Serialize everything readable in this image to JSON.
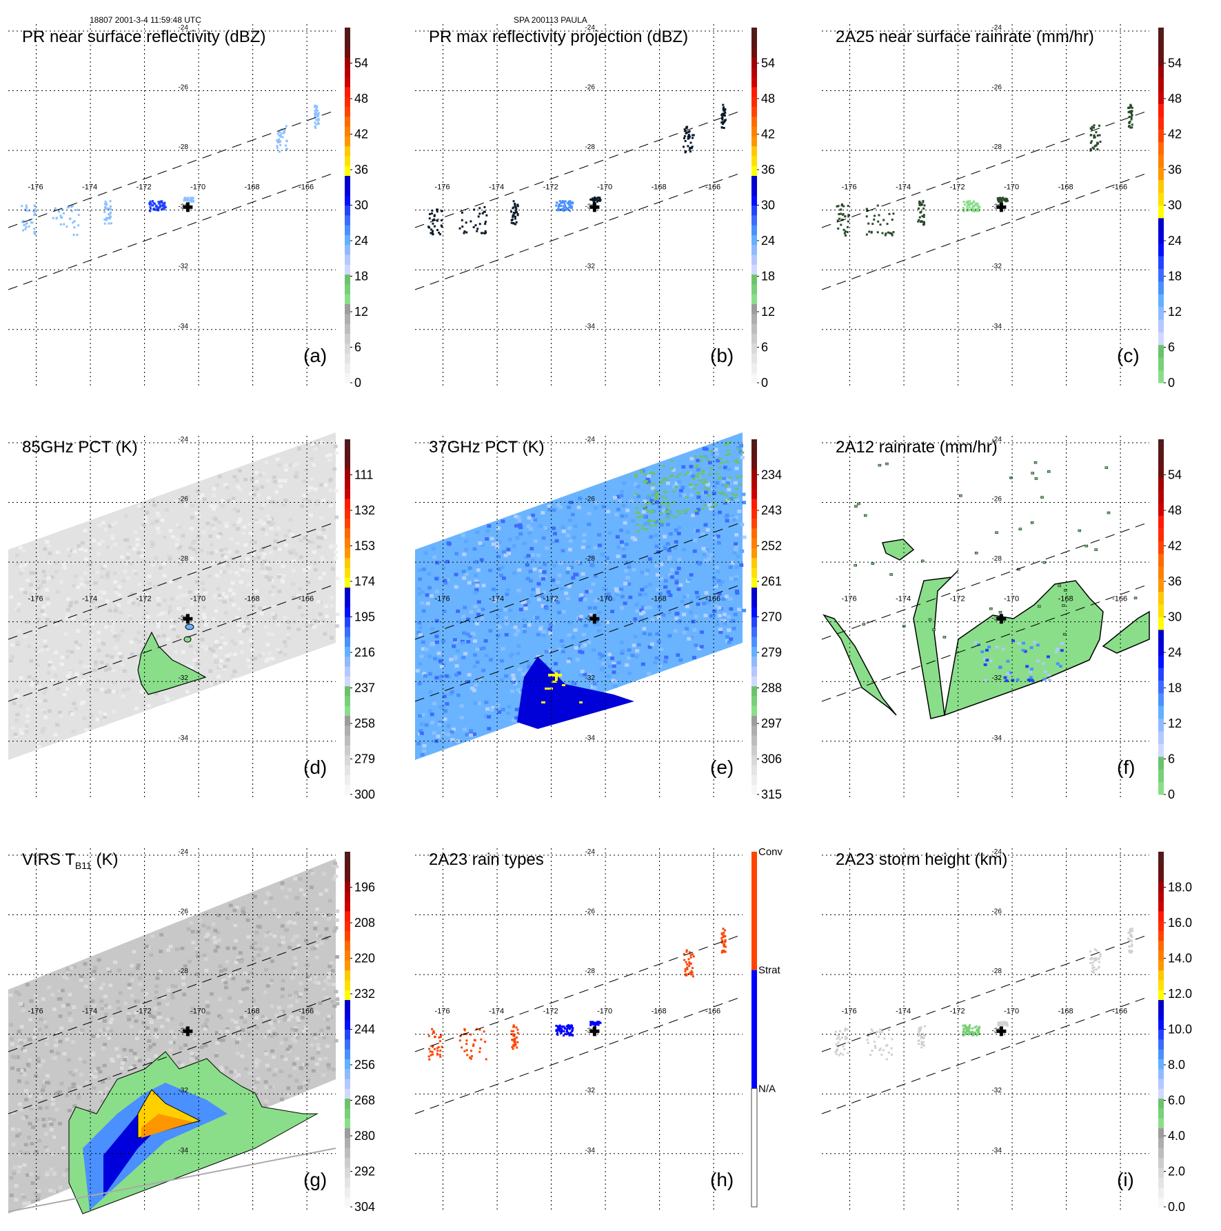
{
  "header": {
    "left": "18807 2001-3-4 11:59:48 UTC",
    "center": "SPA 200113 PAULA"
  },
  "map": {
    "lon_ticks": [
      "-176",
      "-174",
      "-172",
      "-170",
      "-168",
      "-166"
    ],
    "lon_values": [
      -176,
      -174,
      -172,
      -170,
      -168,
      -166
    ],
    "lat_ticks": [
      "-24",
      "-26",
      "-28",
      "-30",
      "-32",
      "-34"
    ],
    "lat_values": [
      -24,
      -26,
      -28,
      -30,
      -32,
      -34
    ],
    "storm_center": {
      "lon": -170.4,
      "lat": -29.9,
      "marker": "plus-icon"
    }
  },
  "colors": {
    "dbz_scale": [
      "#f7f7f7",
      "#eeeeee",
      "#e4e4e4",
      "#d9d9d9",
      "#cccccc",
      "#bdbdbd",
      "#aeaeae",
      "#9c9c9c",
      "#8ade8a",
      "#78d078",
      "#6cc26c",
      "#d0d8ff",
      "#b4c8ff",
      "#90baff",
      "#62b0ff",
      "#4a90ff",
      "#3c6cff",
      "#2244ff",
      "#0010ff",
      "#0000dd",
      "#0000c8",
      "#ffff00",
      "#ffe000",
      "#ffc800",
      "#ff9600",
      "#ff8000",
      "#ff6a00",
      "#ff4400",
      "#ff2a00",
      "#ff1a00",
      "#cc0000",
      "#b40000",
      "#a00000",
      "#6a1010",
      "#5c1414",
      "#521a1a"
    ],
    "rain_scale": [
      "#8ade8a",
      "#78d078",
      "#6cc26c",
      "#d0d8ff",
      "#b4c8ff",
      "#90baff",
      "#62b0ff",
      "#4a90ff",
      "#3c6cff",
      "#2244ff",
      "#0010ff",
      "#0000dd",
      "#0000c8",
      "#ffff00",
      "#ffe000",
      "#ffc800",
      "#ff9600",
      "#ff8000",
      "#ff6a00",
      "#ff4400",
      "#ff2a00",
      "#ff1a00",
      "#cc0000",
      "#b40000",
      "#a00000",
      "#6a1010",
      "#5c1414",
      "#521a1a"
    ],
    "raintype": {
      "conv": "#ff4400",
      "strat": "#0000ff",
      "na": "#ffffff"
    },
    "contour": "#000000",
    "swath_edge": "#555555",
    "viirs_track": "#aaaaaa"
  },
  "panels": [
    {
      "id": "a",
      "title": "PR near surface reflectivity (dBZ)",
      "label": "(a)",
      "colorbar": {
        "type": "scale",
        "scheme": "dbz_scale",
        "ticks": [
          "0",
          "6",
          "12",
          "18",
          "24",
          "30",
          "36",
          "42",
          "48",
          "54"
        ],
        "range": [
          0,
          60
        ]
      },
      "field": "pr_swath"
    },
    {
      "id": "b",
      "title": "PR max reflectivity projection (dBZ)",
      "label": "(b)",
      "colorbar": {
        "type": "scale",
        "scheme": "dbz_scale",
        "ticks": [
          "0",
          "6",
          "12",
          "18",
          "24",
          "30",
          "36",
          "42",
          "48",
          "54"
        ],
        "range": [
          0,
          60
        ]
      },
      "field": "pr_swath"
    },
    {
      "id": "c",
      "title": "2A25 near surface rainrate (mm/hr)",
      "label": "(c)",
      "colorbar": {
        "type": "scale",
        "scheme": "rain_scale",
        "ticks": [
          "0",
          "6",
          "12",
          "18",
          "24",
          "30",
          "36",
          "42",
          "48",
          "54"
        ],
        "range": [
          0,
          60
        ]
      },
      "field": "pr_swath"
    },
    {
      "id": "d",
      "title": "85GHz PCT (K)",
      "label": "(d)",
      "colorbar": {
        "type": "scale",
        "scheme": "dbz_scale",
        "ticks": [
          "300",
          "279",
          "258",
          "237",
          "216",
          "195",
          "174",
          "153",
          "132",
          "111"
        ],
        "range": [
          300,
          90
        ]
      },
      "field": "tmi_swath_gray"
    },
    {
      "id": "e",
      "title": "37GHz PCT (K)",
      "label": "(e)",
      "colorbar": {
        "type": "scale",
        "scheme": "dbz_scale",
        "ticks": [
          "315",
          "306",
          "297",
          "288",
          "279",
          "270",
          "261",
          "252",
          "243",
          "234"
        ],
        "range": [
          315,
          225
        ]
      },
      "field": "tmi_swath_blue"
    },
    {
      "id": "f",
      "title": "2A12 rainrate (mm/hr)",
      "label": "(f)",
      "colorbar": {
        "type": "scale",
        "scheme": "rain_scale",
        "ticks": [
          "0",
          "6",
          "12",
          "18",
          "24",
          "30",
          "36",
          "42",
          "48",
          "54"
        ],
        "range": [
          0,
          60
        ]
      },
      "field": "tmi_rain"
    },
    {
      "id": "g",
      "title_main": "VIRS T",
      "title_sub": "B11",
      "title_tail": " (K)",
      "label": "(g)",
      "colorbar": {
        "type": "scale",
        "scheme": "dbz_scale",
        "ticks": [
          "304",
          "292",
          "280",
          "268",
          "256",
          "244",
          "232",
          "220",
          "208",
          "196"
        ],
        "range": [
          304,
          184
        ]
      },
      "field": "virs_swath"
    },
    {
      "id": "h",
      "title": "2A23 rain types",
      "label": "(h)",
      "colorbar": {
        "type": "category",
        "categories": [
          "N/A",
          "Strat",
          "Conv"
        ]
      },
      "field": "pr_raintype"
    },
    {
      "id": "i",
      "title": "2A23 storm height (km)",
      "label": "(i)",
      "colorbar": {
        "type": "scale",
        "scheme": "dbz_scale",
        "ticks": [
          "0.0",
          "2.0",
          "4.0",
          "6.0",
          "8.0",
          "10.0",
          "12.0",
          "14.0",
          "16.0",
          "18.0"
        ],
        "range": [
          0,
          20
        ]
      },
      "field": "pr_height"
    }
  ]
}
